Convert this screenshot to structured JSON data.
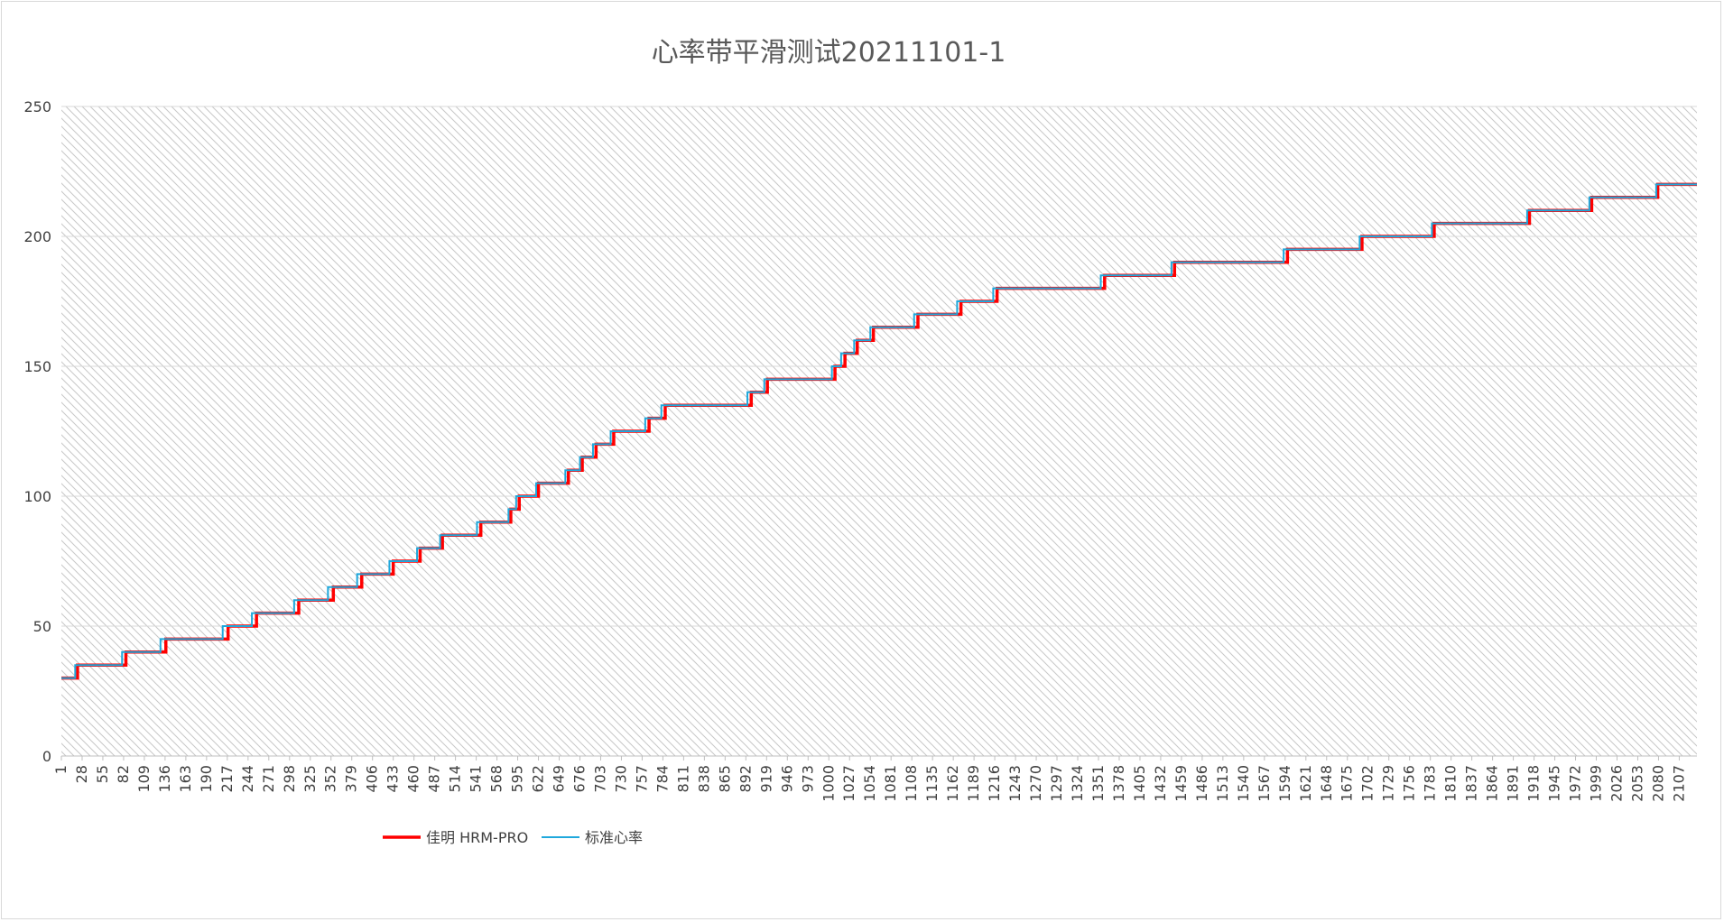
{
  "chart_data": {
    "type": "line",
    "title": "心率带平滑测试20211101-1",
    "xlabel": "",
    "ylabel": "",
    "ylim": [
      0,
      250
    ],
    "yticks": [
      0,
      50,
      100,
      150,
      200,
      250
    ],
    "xlim": [
      1,
      2130
    ],
    "x_tick_labels": [
      1,
      28,
      55,
      82,
      109,
      136,
      163,
      190,
      217,
      244,
      271,
      298,
      325,
      352,
      379,
      406,
      433,
      460,
      487,
      514,
      541,
      568,
      595,
      622,
      649,
      676,
      703,
      730,
      757,
      784,
      811,
      838,
      865,
      892,
      919,
      946,
      973,
      1000,
      1027,
      1054,
      1081,
      1108,
      1135,
      1162,
      1189,
      1216,
      1243,
      1270,
      1297,
      1324,
      1351,
      1378,
      1405,
      1432,
      1459,
      1486,
      1513,
      1540,
      1567,
      1594,
      1621,
      1648,
      1675,
      1702,
      1729,
      1756,
      1783,
      1810,
      1837,
      1864,
      1891,
      1918,
      1945,
      1972,
      1999,
      2026,
      2053,
      2080,
      2107
    ],
    "grid": true,
    "legend_position": "bottom-left",
    "series": [
      {
        "name": "佳明 HRM-PRO",
        "color": "#ff0000",
        "steps": [
          [
            1,
            30
          ],
          [
            22,
            35
          ],
          [
            85,
            40
          ],
          [
            137,
            45
          ],
          [
            218,
            50
          ],
          [
            255,
            55
          ],
          [
            310,
            60
          ],
          [
            355,
            65
          ],
          [
            392,
            70
          ],
          [
            433,
            75
          ],
          [
            468,
            80
          ],
          [
            497,
            85
          ],
          [
            547,
            90
          ],
          [
            586,
            95
          ],
          [
            597,
            100
          ],
          [
            622,
            105
          ],
          [
            661,
            110
          ],
          [
            679,
            115
          ],
          [
            697,
            120
          ],
          [
            720,
            125
          ],
          [
            766,
            130
          ],
          [
            787,
            135
          ],
          [
            899,
            140
          ],
          [
            920,
            145
          ],
          [
            1008,
            150
          ],
          [
            1021,
            155
          ],
          [
            1037,
            160
          ],
          [
            1058,
            165
          ],
          [
            1116,
            170
          ],
          [
            1172,
            175
          ],
          [
            1219,
            180
          ],
          [
            1359,
            185
          ],
          [
            1450,
            190
          ],
          [
            1597,
            195
          ],
          [
            1694,
            200
          ],
          [
            1788,
            205
          ],
          [
            1912,
            210
          ],
          [
            1993,
            215
          ],
          [
            2079,
            220
          ],
          [
            2130,
            220
          ]
        ]
      },
      {
        "name": "标准心率",
        "color": "#1fa8dc",
        "steps": [
          [
            1,
            30
          ],
          [
            19,
            35
          ],
          [
            80,
            40
          ],
          [
            130,
            45
          ],
          [
            211,
            50
          ],
          [
            249,
            55
          ],
          [
            304,
            60
          ],
          [
            348,
            65
          ],
          [
            386,
            70
          ],
          [
            428,
            75
          ],
          [
            464,
            80
          ],
          [
            494,
            85
          ],
          [
            542,
            90
          ],
          [
            583,
            95
          ],
          [
            593,
            100
          ],
          [
            619,
            105
          ],
          [
            657,
            110
          ],
          [
            676,
            115
          ],
          [
            693,
            120
          ],
          [
            716,
            125
          ],
          [
            761,
            130
          ],
          [
            782,
            135
          ],
          [
            894,
            140
          ],
          [
            916,
            145
          ],
          [
            1004,
            150
          ],
          [
            1016,
            155
          ],
          [
            1033,
            160
          ],
          [
            1054,
            165
          ],
          [
            1111,
            170
          ],
          [
            1167,
            175
          ],
          [
            1214,
            180
          ],
          [
            1354,
            185
          ],
          [
            1446,
            190
          ],
          [
            1592,
            195
          ],
          [
            1691,
            200
          ],
          [
            1785,
            205
          ],
          [
            1909,
            210
          ],
          [
            1990,
            215
          ],
          [
            2077,
            220
          ],
          [
            2130,
            220
          ]
        ]
      }
    ]
  }
}
